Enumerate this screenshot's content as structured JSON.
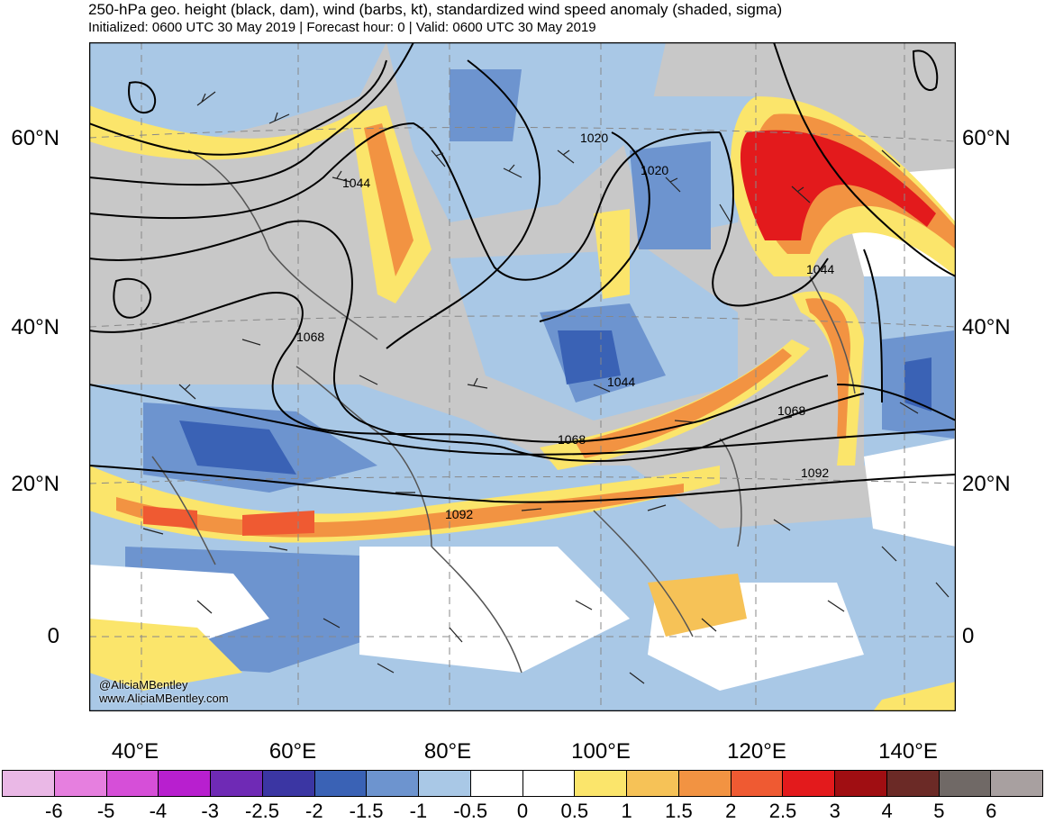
{
  "title": "250-hPa geo. height (black, dam), wind (barbs, kt), standardized wind speed anomaly (shaded, sigma)",
  "subtitle": "Initialized: 0600 UTC 30 May 2019 | Forecast hour: 0 | Valid: 0600 UTC 30 May 2019",
  "latitude_labels": [
    "60°N",
    "40°N",
    "20°N",
    "0"
  ],
  "longitude_labels": [
    "40°E",
    "60°E",
    "80°E",
    "100°E",
    "120°E",
    "140°E"
  ],
  "contour_labels": [
    "1020",
    "1020",
    "1044",
    "1044",
    "1044",
    "1068",
    "1068",
    "1068",
    "1092",
    "1092"
  ],
  "credits": [
    "@AliciaMBentley",
    "www.AliciaMBentley.com"
  ],
  "colorbar": {
    "labels": [
      "-6",
      "-5",
      "-4",
      "-3",
      "-2.5",
      "-2",
      "-1.5",
      "-1",
      "-0.5",
      "0",
      "0.5",
      "1",
      "1.5",
      "2",
      "2.5",
      "3",
      "4",
      "5",
      "6"
    ],
    "colors": [
      "#eab8e6",
      "#e67fdf",
      "#d64fd8",
      "#b81fcf",
      "#6f2ab5",
      "#3b36a3",
      "#3a62b5",
      "#6d94cf",
      "#a9c8e6",
      "#ffffff",
      "#ffffff",
      "#fbe56b",
      "#f6c257",
      "#f29342",
      "#ef5a32",
      "#e31a1c",
      "#a00e12",
      "#6b2a26",
      "#706966",
      "#a8a0a0"
    ]
  }
}
